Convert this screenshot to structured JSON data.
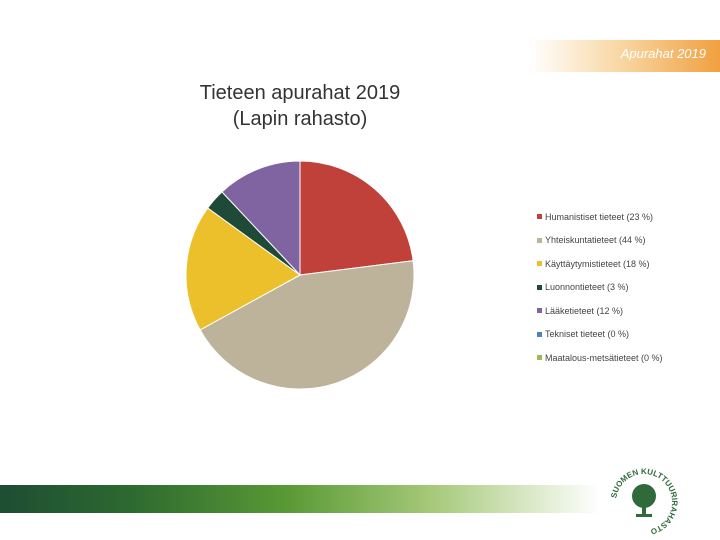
{
  "header": {
    "tag": "Apurahat 2019"
  },
  "chart_data": {
    "type": "pie",
    "title": [
      "Tieteen apurahat 2019",
      "(Lapin rahasto)"
    ],
    "slices": [
      {
        "label": "Humanistiset tieteet",
        "percent": 23,
        "legend": "Humanistiset tieteet (23 %)",
        "color": "#c0403a"
      },
      {
        "label": "Yhteiskuntatieteet",
        "percent": 44,
        "legend": "Yhteiskuntatieteet (44 %)",
        "color": "#bdb39a"
      },
      {
        "label": "Käyttäytymistieteet",
        "percent": 18,
        "legend": "Käyttäytymistieteet (18 %)",
        "color": "#ecc02a"
      },
      {
        "label": "Luonnontieteet",
        "percent": 3,
        "legend": "Luonnontieteet (3 %)",
        "color": "#1f4a38"
      },
      {
        "label": "Lääketieteet",
        "percent": 12,
        "legend": "Lääketieteet (12 %)",
        "color": "#8064a2"
      },
      {
        "label": "Tekniset tieteet",
        "percent": 0,
        "legend": "Tekniset tieteet (0 %)",
        "color": "#4f81bd"
      },
      {
        "label": "Maatalous-metsätieteet",
        "percent": 0,
        "legend": "Maatalous-metsätieteet (0 %)",
        "color": "#9bbb59"
      }
    ],
    "legend_position": "right"
  },
  "logo": {
    "text": "SUOMEN KULTTUURIRAHASTO",
    "icon": "tree-icon"
  }
}
